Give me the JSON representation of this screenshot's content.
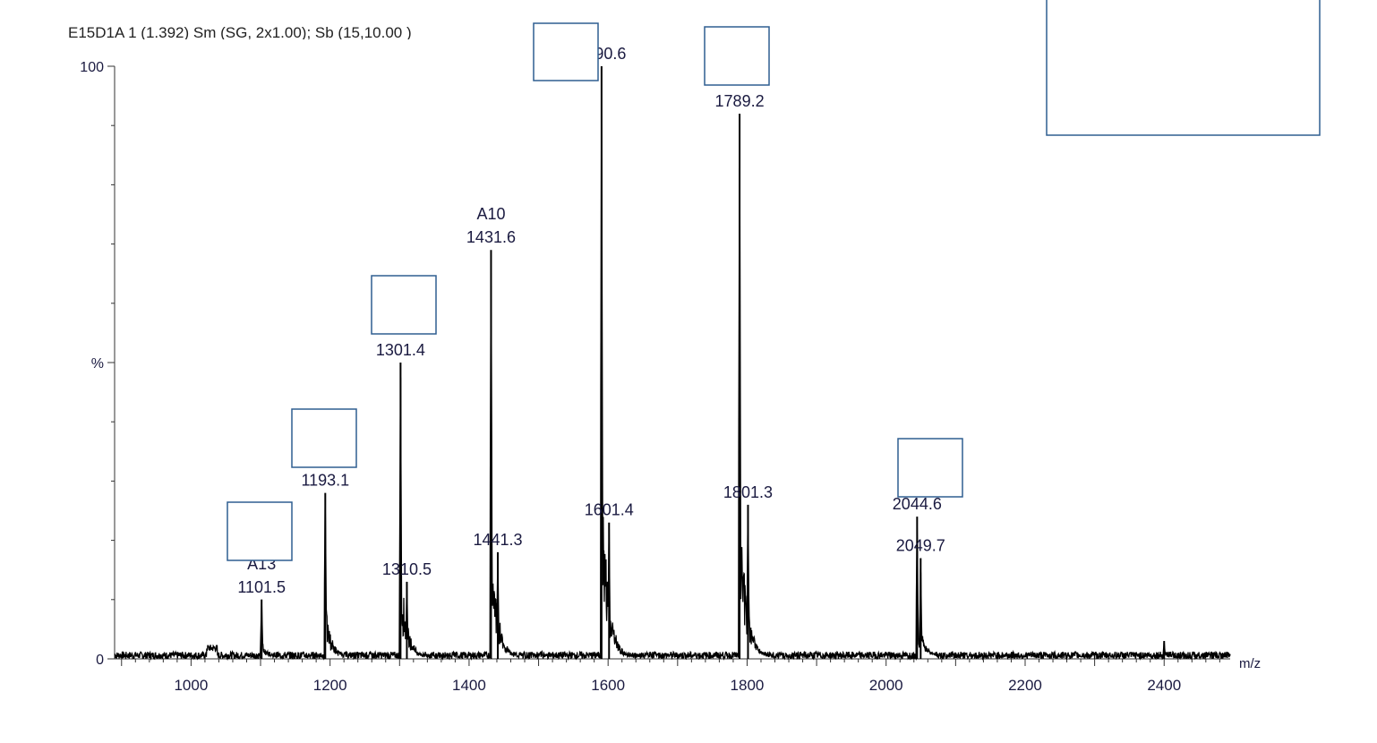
{
  "header": {
    "text": "E15D1A 1 (1.392) Sm (SG, 2x1.00); Sb (15,10.00 )"
  },
  "chart_data": {
    "type": "line",
    "title": "",
    "xlabel": "m/z",
    "ylabel": "%",
    "xlim": [
      890,
      2495
    ],
    "ylim": [
      0,
      100
    ],
    "x_ticks": [
      "1000",
      "1200",
      "1400",
      "1600",
      "1800",
      "2000",
      "2200",
      "2400"
    ],
    "y_ticks": [
      "0",
      "%",
      "100"
    ],
    "grid": false,
    "peaks": [
      {
        "mz": 1101.5,
        "intensity": 10,
        "label": "1101.5",
        "prefix": "A13"
      },
      {
        "mz": 1193.1,
        "intensity": 28,
        "label": "1193.1"
      },
      {
        "mz": 1301.4,
        "intensity": 50,
        "label": "1301.4"
      },
      {
        "mz": 1310.5,
        "intensity": 13,
        "label": "1310.5"
      },
      {
        "mz": 1431.6,
        "intensity": 69,
        "label": "1431.6",
        "prefix": "A10"
      },
      {
        "mz": 1441.3,
        "intensity": 18,
        "label": "1441.3"
      },
      {
        "mz": 1590.6,
        "intensity": 100,
        "label": "1590.6"
      },
      {
        "mz": 1601.4,
        "intensity": 23,
        "label": "1601.4"
      },
      {
        "mz": 1789.2,
        "intensity": 92,
        "label": "1789.2"
      },
      {
        "mz": 1801.3,
        "intensity": 26,
        "label": "1801.3"
      },
      {
        "mz": 2044.6,
        "intensity": 24,
        "label": "2044.6"
      },
      {
        "mz": 2049.7,
        "intensity": 17,
        "label": "2049.7"
      },
      {
        "mz": 2400.0,
        "intensity": 3,
        "label": ""
      }
    ]
  }
}
